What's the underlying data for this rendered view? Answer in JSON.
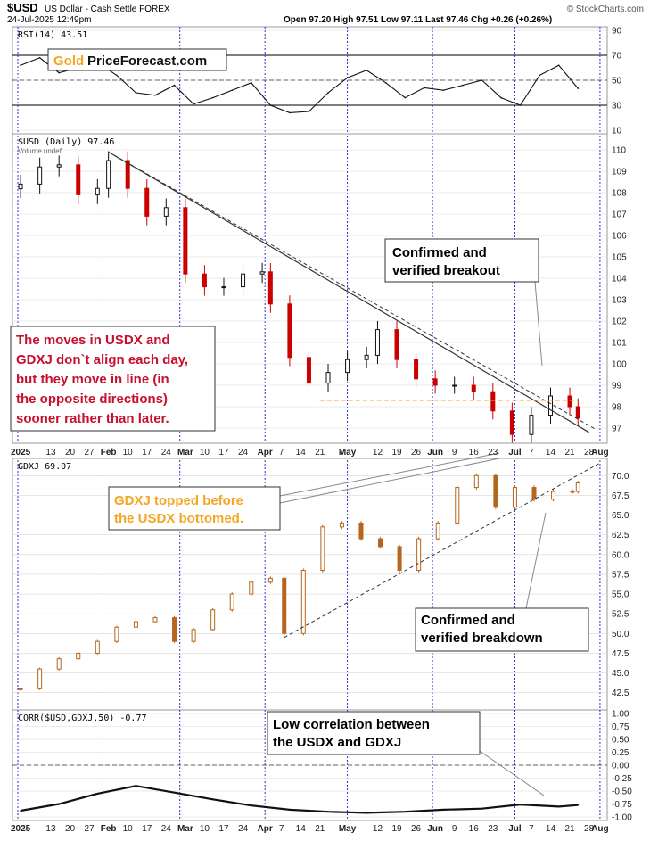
{
  "header": {
    "symbol": "$USD",
    "desc": "US Dollar - Cash Settle FOREX",
    "timestamp": "24-Jul-2025 12:49pm",
    "ohlc": "Open 97.20  High 97.51  Low 97.11  Last 97.46  Chg +0.26 (+0.26%)",
    "watermark": "© StockCharts.com"
  },
  "logo": {
    "gold": "Gold",
    "rest": "PriceForecast.com"
  },
  "colors": {
    "up": "#111111",
    "down": "#cc0000",
    "gdxj": "#b5651d",
    "accent_orange": "#f5a623",
    "text_red": "#c8102e",
    "grid": "#d7d7d7",
    "month_line": "#2b2bd9"
  },
  "chart_data": [
    {
      "id": "rsi",
      "type": "line",
      "title": "RSI(14) 43.51",
      "ylim": [
        10,
        90
      ],
      "yticks": [
        90,
        70,
        50,
        30,
        10
      ],
      "reference_lines": [
        70,
        50,
        30
      ],
      "series": [
        {
          "name": "RSI(14)",
          "x": [
            "2025-01-02",
            "2025-01-09",
            "2025-01-16",
            "2025-01-23",
            "2025-01-30",
            "2025-02-06",
            "2025-02-13",
            "2025-02-20",
            "2025-02-27",
            "2025-03-06",
            "2025-03-13",
            "2025-03-20",
            "2025-03-27",
            "2025-04-03",
            "2025-04-10",
            "2025-04-17",
            "2025-04-24",
            "2025-05-01",
            "2025-05-08",
            "2025-05-15",
            "2025-05-22",
            "2025-05-29",
            "2025-06-05",
            "2025-06-12",
            "2025-06-19",
            "2025-06-26",
            "2025-07-03",
            "2025-07-10",
            "2025-07-17",
            "2025-07-24"
          ],
          "values": [
            62,
            68,
            56,
            60,
            64,
            54,
            40,
            38,
            46,
            31,
            36,
            42,
            48,
            30,
            24,
            25,
            40,
            52,
            58,
            48,
            36,
            44,
            42,
            46,
            50,
            36,
            30,
            54,
            62,
            43.51
          ]
        }
      ]
    },
    {
      "id": "usd",
      "type": "candlestick",
      "title": "$USD (Daily) 97.46",
      "subtitle": "Volume undef",
      "ylim": [
        96.5,
        110.5
      ],
      "yticks": [
        110,
        109,
        108,
        107,
        106,
        105,
        104,
        103,
        102,
        101,
        100,
        99,
        98,
        97
      ],
      "series": [
        {
          "name": "$USD",
          "x": [
            "2025-01-02",
            "2025-01-09",
            "2025-01-16",
            "2025-01-23",
            "2025-01-30",
            "2025-02-03",
            "2025-02-10",
            "2025-02-17",
            "2025-02-24",
            "2025-03-03",
            "2025-03-10",
            "2025-03-17",
            "2025-03-24",
            "2025-03-31",
            "2025-04-03",
            "2025-04-10",
            "2025-04-17",
            "2025-04-24",
            "2025-05-01",
            "2025-05-08",
            "2025-05-12",
            "2025-05-19",
            "2025-05-26",
            "2025-06-02",
            "2025-06-09",
            "2025-06-16",
            "2025-06-23",
            "2025-06-30",
            "2025-07-07",
            "2025-07-14",
            "2025-07-21",
            "2025-07-24"
          ],
          "values": [
            108.4,
            109.2,
            109.3,
            107.9,
            108.2,
            109.5,
            108.2,
            106.9,
            107.3,
            104.2,
            103.6,
            103.6,
            104.2,
            104.3,
            102.8,
            100.3,
            99.1,
            99.6,
            100.2,
            100.4,
            101.6,
            100.2,
            99.3,
            99.0,
            99.0,
            98.7,
            97.8,
            96.7,
            97.6,
            98.5,
            98.0,
            97.46
          ]
        }
      ],
      "annotations": [
        "Confirmed and verified breakout"
      ]
    },
    {
      "id": "gdxj",
      "type": "candlestick",
      "title": "GDXJ 69.07",
      "ylim": [
        41,
        71.5
      ],
      "yticks": [
        70.0,
        67.5,
        65.0,
        62.5,
        60.0,
        57.5,
        55.0,
        52.5,
        50.0,
        47.5,
        45.0,
        42.5
      ],
      "series": [
        {
          "name": "GDXJ",
          "x": [
            "2025-01-02",
            "2025-01-09",
            "2025-01-16",
            "2025-01-23",
            "2025-01-30",
            "2025-02-06",
            "2025-02-13",
            "2025-02-20",
            "2025-02-27",
            "2025-03-06",
            "2025-03-13",
            "2025-03-20",
            "2025-03-27",
            "2025-04-03",
            "2025-04-08",
            "2025-04-15",
            "2025-04-22",
            "2025-04-29",
            "2025-05-06",
            "2025-05-13",
            "2025-05-20",
            "2025-05-27",
            "2025-06-03",
            "2025-06-10",
            "2025-06-17",
            "2025-06-24",
            "2025-07-01",
            "2025-07-08",
            "2025-07-15",
            "2025-07-22",
            "2025-07-24"
          ],
          "values": [
            43.0,
            45.5,
            46.8,
            47.5,
            49.0,
            50.8,
            51.5,
            52.0,
            49.0,
            50.5,
            53.0,
            55.0,
            56.5,
            57.0,
            50.0,
            58.0,
            63.5,
            64.0,
            62.0,
            61.0,
            58.0,
            62.0,
            64.0,
            68.5,
            70.0,
            66.0,
            68.5,
            67.0,
            68.0,
            68.0,
            69.07
          ]
        }
      ],
      "annotations": [
        "GDXJ topped before the USDX bottomed.",
        "Confirmed and verified breakdown"
      ]
    },
    {
      "id": "corr",
      "type": "line",
      "title": "CORR($USD,GDXJ,50) -0.77",
      "ylim": [
        -1.0,
        1.0
      ],
      "yticks": [
        "1.00",
        "0.75",
        "0.50",
        "0.25",
        "0.00",
        "-0.25",
        "-0.50",
        "-0.75",
        "-1.00"
      ],
      "reference_lines": [
        0
      ],
      "series": [
        {
          "name": "CORR($USD,GDXJ,50)",
          "x": [
            "2025-01-02",
            "2025-01-16",
            "2025-01-30",
            "2025-02-13",
            "2025-02-27",
            "2025-03-13",
            "2025-03-27",
            "2025-04-10",
            "2025-04-24",
            "2025-05-08",
            "2025-05-22",
            "2025-06-05",
            "2025-06-19",
            "2025-07-03",
            "2025-07-17",
            "2025-07-24"
          ],
          "values": [
            -0.88,
            -0.75,
            -0.55,
            -0.4,
            -0.53,
            -0.66,
            -0.78,
            -0.86,
            -0.9,
            -0.92,
            -0.9,
            -0.86,
            -0.84,
            -0.76,
            -0.8,
            -0.77
          ]
        }
      ],
      "annotations": [
        "Low correlation between the USDX and GDXJ"
      ]
    }
  ],
  "x_axis_top": [
    "2025",
    "13",
    "20",
    "27",
    "Feb",
    "10",
    "17",
    "24",
    "Mar",
    "10",
    "17",
    "24",
    "Apr",
    "7",
    "14",
    "21",
    "May",
    "12",
    "19",
    "26",
    "Jun",
    "9",
    "16",
    "23",
    "Jul",
    "7",
    "14",
    "21",
    "28",
    "Aug"
  ],
  "x_axis_bottom": [
    "2025",
    "13",
    "20",
    "27",
    "Feb",
    "10",
    "17",
    "24",
    "Mar",
    "10",
    "17",
    "24",
    "Apr",
    "7",
    "14",
    "21",
    "May",
    "12",
    "19",
    "26",
    "Jun",
    "9",
    "16",
    "23",
    "Jul",
    "7",
    "14",
    "21",
    "28",
    "Aug"
  ],
  "annotations": {
    "breakout": [
      "Confirmed and",
      "verified breakout"
    ],
    "red_note": [
      "The moves in USDX and",
      "GDXJ don`t align each day,",
      "but they move in line (in",
      "the opposite directions)",
      "sooner rather than later."
    ],
    "gdxj_top": [
      "GDXJ topped before",
      "the USDX bottomed."
    ],
    "breakdown": [
      "Confirmed and",
      "verified breakdown"
    ],
    "low_corr": [
      "Low correlation between",
      "the USDX and GDXJ"
    ]
  }
}
